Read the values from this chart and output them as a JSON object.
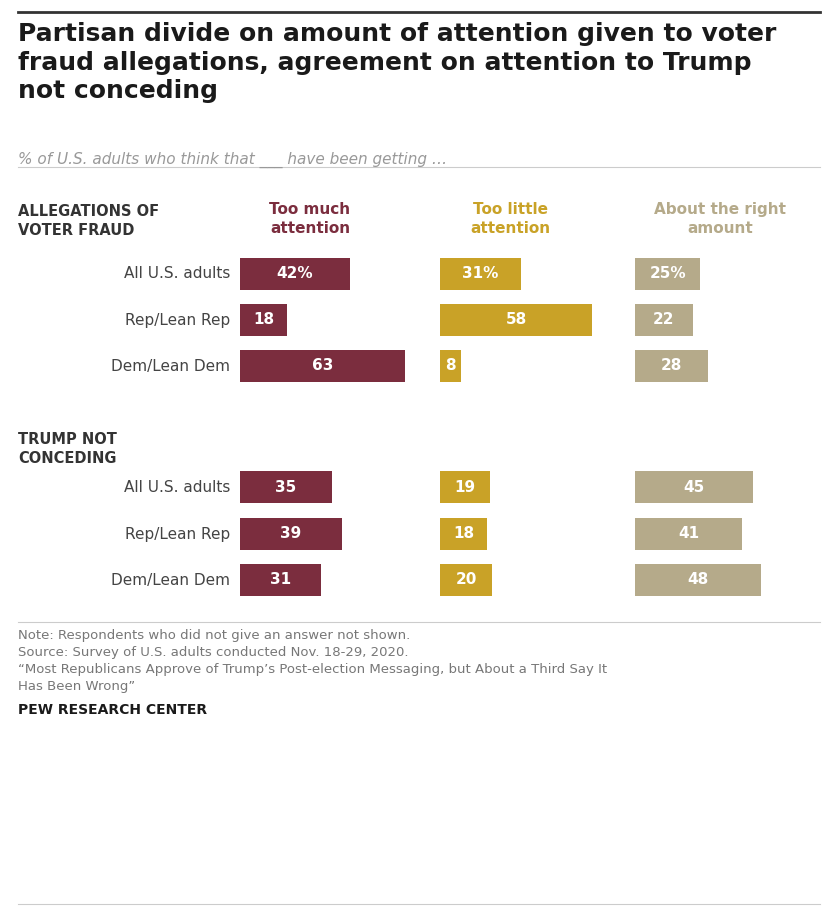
{
  "title": "Partisan divide on amount of attention given to voter\nfraud allegations, agreement on attention to Trump\nnot conceding",
  "subtitle": "% of U.S. adults who think that ___ have been getting …",
  "col_headers": [
    "Too much\nattention",
    "Too little\nattention",
    "About the right\namount"
  ],
  "col_colors": [
    "#7b2d3e",
    "#c9a227",
    "#b5aa8a"
  ],
  "section1_label": "ALLEGATIONS OF\nVOTER FRAUD",
  "section2_label": "TRUMP NOT\nCONCEDING",
  "row_labels": [
    "All U.S. adults",
    "Rep/Lean Rep",
    "Dem/Lean Dem",
    "All U.S. adults",
    "Rep/Lean Rep",
    "Dem/Lean Dem"
  ],
  "data": [
    [
      42,
      31,
      25
    ],
    [
      18,
      58,
      22
    ],
    [
      63,
      8,
      28
    ],
    [
      35,
      19,
      45
    ],
    [
      39,
      18,
      41
    ],
    [
      31,
      20,
      48
    ]
  ],
  "display_values": [
    [
      "42%",
      "31%",
      "25%"
    ],
    [
      "18",
      "58",
      "22"
    ],
    [
      "63",
      "8",
      "28"
    ],
    [
      "35",
      "19",
      "45"
    ],
    [
      "39",
      "18",
      "41"
    ],
    [
      "31",
      "20",
      "48"
    ]
  ],
  "bar_colors": [
    "#7b2d3e",
    "#c9a227",
    "#b5aa8a"
  ],
  "note_lines": [
    "Note: Respondents who did not give an answer not shown.",
    "Source: Survey of U.S. adults conducted Nov. 18-29, 2020.",
    "“Most Republicans Approve of Trump’s Post-election Messaging, but About a Third Say It",
    "Has Been Wrong”"
  ],
  "source_label": "PEW RESEARCH CENTER",
  "background_color": "#ffffff"
}
